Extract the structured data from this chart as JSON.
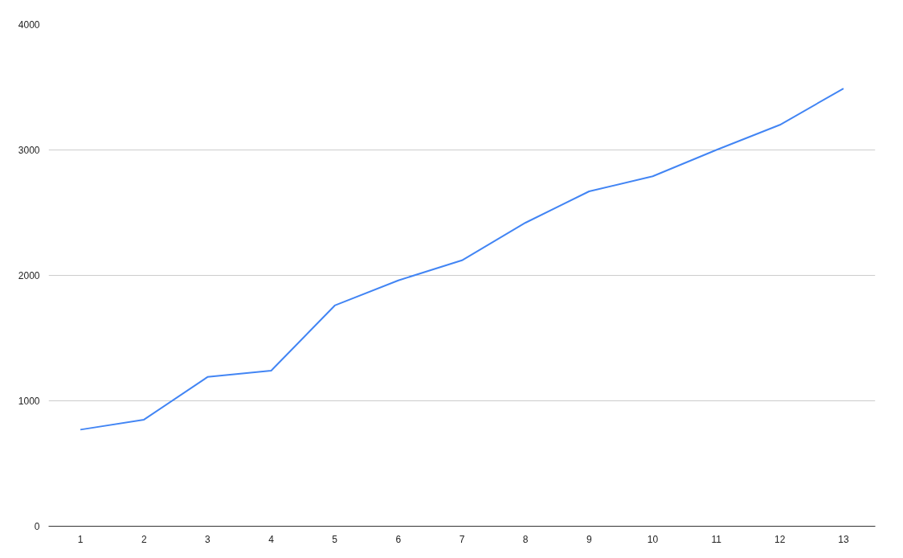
{
  "chart_data": {
    "type": "line",
    "categories": [
      "1",
      "2",
      "3",
      "4",
      "5",
      "6",
      "7",
      "8",
      "9",
      "10",
      "11",
      "12",
      "13"
    ],
    "series": [
      {
        "color": "#4285f4",
        "values": [
          770,
          850,
          1190,
          1240,
          1760,
          1960,
          2120,
          2420,
          2670,
          2790,
          3000,
          3200,
          3490
        ]
      }
    ],
    "ylim": [
      0,
      4000
    ],
    "yticks": [
      0,
      1000,
      2000,
      3000,
      4000
    ],
    "grid": "y",
    "marker": "none",
    "line_style": "solid"
  }
}
